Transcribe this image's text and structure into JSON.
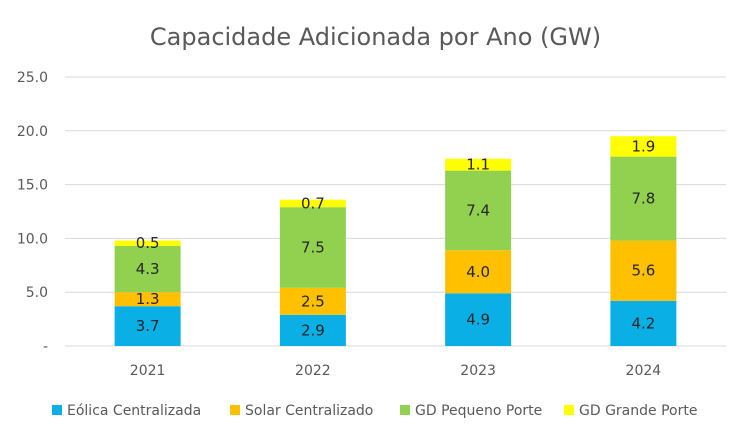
{
  "chart_data": {
    "type": "bar",
    "stacked": true,
    "title": "Capacidade Adicionada por Ano (GW)",
    "xlabel": "",
    "ylabel": "",
    "categories": [
      "2021",
      "2022",
      "2023",
      "2024"
    ],
    "ylim": [
      0,
      25
    ],
    "yticks": [
      "-",
      "5.0",
      "10.0",
      "15.0",
      "20.0",
      "25.0"
    ],
    "grid": true,
    "legend_position": "bottom",
    "series": [
      {
        "name": "Eólica Centralizada",
        "color": "#0AAFE6",
        "values": [
          3.7,
          2.9,
          4.9,
          4.2
        ],
        "labels": [
          "3.7",
          "2.9",
          "4.9",
          "4.2"
        ]
      },
      {
        "name": "Solar Centralizado",
        "color": "#FFC000",
        "values": [
          1.3,
          2.5,
          4.0,
          5.6
        ],
        "labels": [
          "1.3",
          "2.5",
          "4.0",
          "5.6"
        ]
      },
      {
        "name": "GD Pequeno Porte",
        "color": "#92D050",
        "values": [
          4.3,
          7.5,
          7.4,
          7.8
        ],
        "labels": [
          "4.3",
          "7.5",
          "7.4",
          "7.8"
        ]
      },
      {
        "name": "GD Grande Porte",
        "color": "#FFFF00",
        "values": [
          0.5,
          0.7,
          1.1,
          1.9
        ],
        "labels": [
          "0.5",
          "0.7",
          "1.1",
          "1.9"
        ]
      }
    ]
  }
}
